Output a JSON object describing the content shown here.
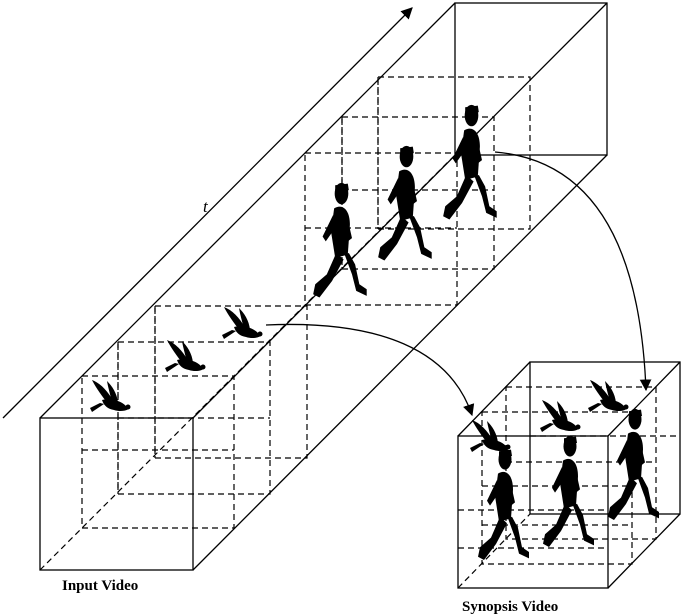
{
  "labels": {
    "time_axis": "t",
    "input": "Input Video",
    "synopsis": "Synopsis Video"
  },
  "icons": {
    "runner": "runner-silhouette-icon",
    "bird": "bird-silhouette-icon"
  },
  "colors": {
    "ink": "#000000",
    "background": "#ffffff"
  }
}
